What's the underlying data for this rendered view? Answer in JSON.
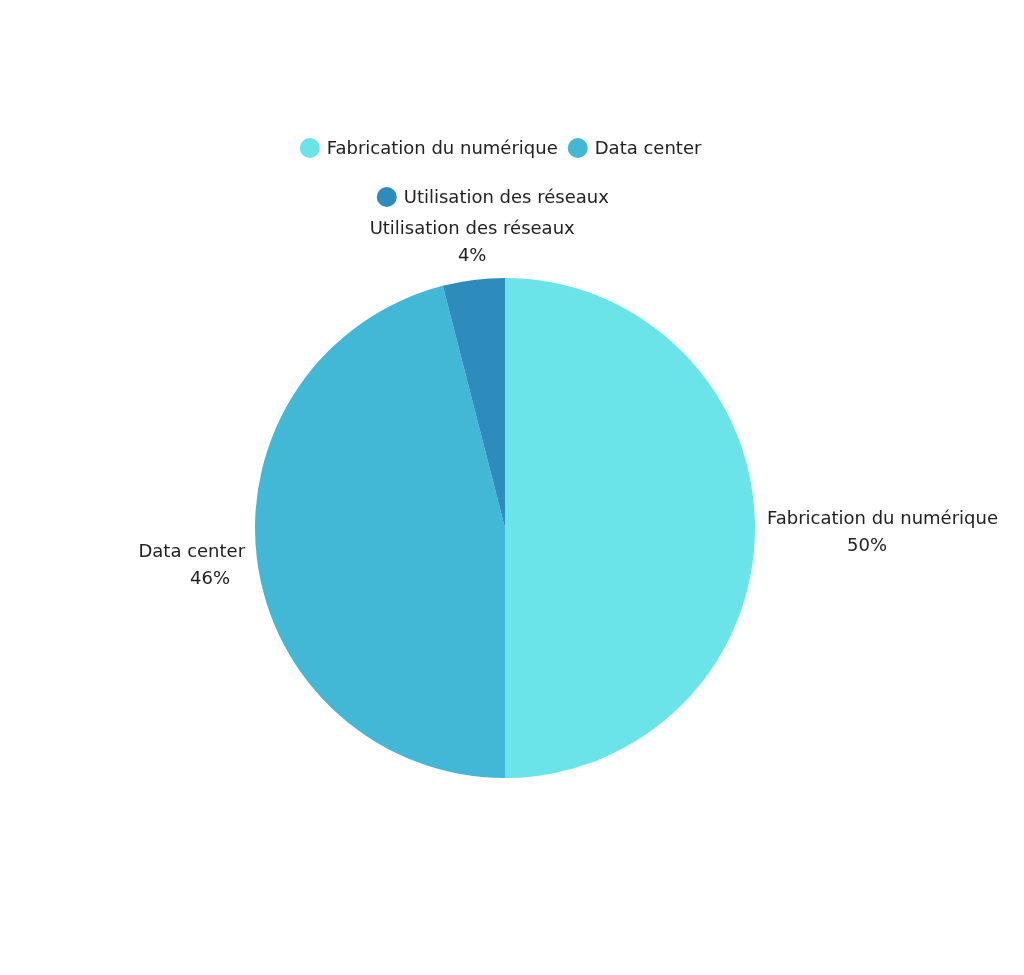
{
  "chart_data": {
    "type": "pie",
    "categories": [
      "Fabrication du numérique",
      "Data center",
      "Utilisation des réseaux"
    ],
    "values": [
      50,
      46,
      4
    ],
    "colors": [
      "#6ae4e8",
      "#42b8d6",
      "#2e8cbc"
    ],
    "value_labels": [
      "50%",
      "46%",
      "4%"
    ],
    "legend": "top"
  }
}
